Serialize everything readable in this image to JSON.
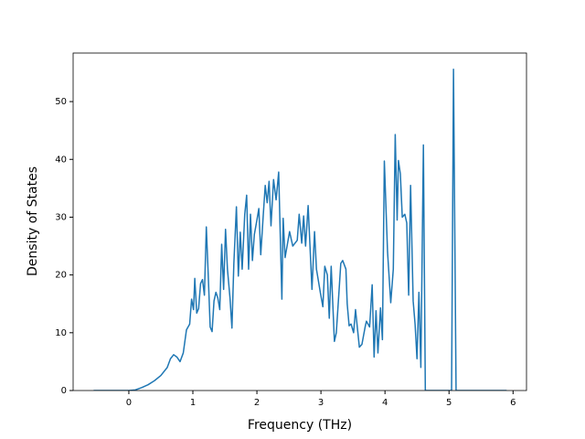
{
  "chart_data": {
    "type": "line",
    "xlabel": "Frequency (THz)",
    "ylabel": "Density of States",
    "color": "#1f77b4",
    "x": [
      -0.55,
      0,
      0.1,
      0.2,
      0.3,
      0.4,
      0.5,
      0.6,
      0.65,
      0.7,
      0.75,
      0.8,
      0.85,
      0.9,
      0.95,
      0.98,
      1.01,
      1.03,
      1.06,
      1.09,
      1.12,
      1.15,
      1.18,
      1.21,
      1.24,
      1.27,
      1.3,
      1.33,
      1.36,
      1.39,
      1.42,
      1.45,
      1.48,
      1.51,
      1.54,
      1.58,
      1.61,
      1.64,
      1.68,
      1.71,
      1.74,
      1.77,
      1.81,
      1.84,
      1.87,
      1.9,
      1.93,
      1.96,
      2.0,
      2.03,
      2.06,
      2.1,
      2.13,
      2.16,
      2.19,
      2.22,
      2.26,
      2.3,
      2.34,
      2.39,
      2.41,
      2.44,
      2.51,
      2.56,
      2.63,
      2.66,
      2.7,
      2.73,
      2.76,
      2.8,
      2.86,
      2.9,
      2.93,
      2.99,
      3.03,
      3.06,
      3.1,
      3.13,
      3.16,
      3.21,
      3.24,
      3.29,
      3.31,
      3.34,
      3.39,
      3.41,
      3.44,
      3.47,
      3.51,
      3.54,
      3.6,
      3.64,
      3.69,
      3.71,
      3.76,
      3.8,
      3.83,
      3.86,
      3.89,
      3.93,
      3.96,
      3.99,
      4.04,
      4.09,
      4.13,
      4.16,
      4.19,
      4.21,
      4.24,
      4.27,
      4.31,
      4.34,
      4.37,
      4.4,
      4.44,
      4.47,
      4.5,
      4.53,
      4.56,
      4.6,
      4.63,
      5.04,
      5.07,
      5.11,
      5.9
    ],
    "values": [
      0,
      0,
      0.1,
      0.5,
      1.0,
      1.7,
      2.6,
      4.0,
      5.5,
      6.2,
      5.8,
      5.0,
      6.5,
      10.5,
      11.5,
      15.8,
      14.0,
      19.4,
      13.4,
      14.2,
      18.5,
      19.2,
      16.5,
      28.3,
      20.0,
      11.0,
      10.2,
      15.5,
      17.0,
      16.0,
      14.0,
      25.3,
      17.5,
      27.9,
      21.0,
      16.0,
      10.8,
      22.0,
      31.8,
      19.8,
      27.4,
      21.0,
      30.5,
      33.8,
      21.0,
      30.5,
      22.5,
      27.0,
      29.5,
      31.5,
      23.5,
      30.5,
      35.5,
      32.5,
      36.2,
      28.5,
      36.5,
      33.0,
      37.8,
      15.8,
      29.8,
      23.0,
      27.5,
      25.0,
      26.0,
      30.5,
      25.5,
      30.2,
      25.0,
      32.0,
      17.5,
      27.5,
      21.0,
      17.0,
      14.5,
      21.5,
      20.0,
      12.5,
      21.5,
      8.5,
      10.0,
      18.5,
      22.0,
      22.5,
      21.0,
      15.0,
      11.2,
      11.5,
      10.0,
      14.0,
      7.5,
      8.0,
      11.0,
      12.0,
      11.0,
      18.3,
      5.8,
      13.8,
      6.5,
      14.3,
      8.8,
      39.7,
      24.0,
      15.2,
      21.0,
      44.3,
      29.5,
      39.8,
      37.5,
      30.0,
      30.5,
      29.0,
      16.5,
      35.5,
      15.5,
      11.5,
      5.5,
      17.0,
      4.0,
      42.5,
      0,
      0,
      55.6,
      0,
      0
    ],
    "xlim": [
      -0.87,
      6.21
    ],
    "ylim": [
      0,
      58.4
    ],
    "xticks": [
      0,
      1,
      2,
      3,
      4,
      5,
      6
    ],
    "yticks": [
      0,
      10,
      20,
      30,
      40,
      50
    ]
  }
}
